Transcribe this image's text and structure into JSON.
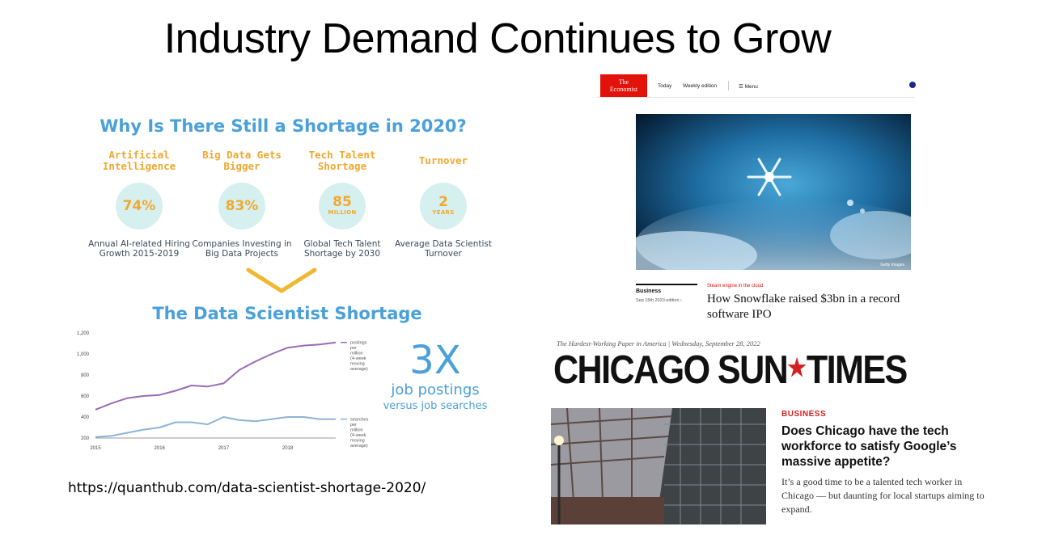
{
  "slide": {
    "title": "Industry Demand Continues to Grow",
    "source_url": "https://quanthub.com/data-scientist-shortage-2020/"
  },
  "infographic": {
    "heading": "Why Is There Still a Shortage in 2020?",
    "stats": [
      {
        "label": "Artificial Intelligence",
        "value": "74%",
        "sub": "",
        "desc": "Annual AI-related Hiring Growth 2015-2019"
      },
      {
        "label": "Big Data Gets Bigger",
        "value": "83%",
        "sub": "",
        "desc": "Companies Investing in Big Data Projects"
      },
      {
        "label": "Tech Talent Shortage",
        "value": "85",
        "sub": "MILLION",
        "desc": "Global Tech Talent Shortage by 2030"
      },
      {
        "label": "Turnover",
        "value": "2",
        "sub": "YEARS",
        "desc": "Average Data Scientist Turnover"
      }
    ],
    "chart_heading": "The Data Scientist Shortage",
    "big_stat": {
      "value": "3X",
      "line1": "job postings",
      "line2": "versus job searches"
    },
    "colors": {
      "heading": "#4aa0d8",
      "accent": "#f0a830",
      "circle": "#d6f0f0"
    }
  },
  "chart_data": {
    "type": "line",
    "x": [
      2015.0,
      2015.25,
      2015.5,
      2015.75,
      2016.0,
      2016.25,
      2016.5,
      2016.75,
      2017.0,
      2017.25,
      2017.5,
      2017.75,
      2018.0,
      2018.25,
      2018.5,
      2018.75
    ],
    "x_ticks": [
      "2015",
      "2016",
      "2017",
      "2018"
    ],
    "y_ticks": [
      "200",
      "400",
      "600",
      "800",
      "1,000",
      "1,200"
    ],
    "ylim": [
      200,
      1200
    ],
    "series": [
      {
        "name": "postings per million (4-week moving average)",
        "color": "#9b6bb5",
        "values": [
          470,
          530,
          580,
          600,
          610,
          650,
          700,
          690,
          720,
          850,
          930,
          1000,
          1060,
          1080,
          1090,
          1110
        ]
      },
      {
        "name": "searches per million (4-week moving average)",
        "color": "#8db4d8",
        "values": [
          210,
          220,
          250,
          280,
          300,
          350,
          350,
          330,
          400,
          370,
          360,
          380,
          400,
          400,
          380,
          380
        ]
      }
    ],
    "grid": false,
    "legend": "right"
  },
  "economist": {
    "logo_line1": "The",
    "logo_line2": "Economist",
    "nav": [
      "Today",
      "Weekly edition",
      "Menu"
    ],
    "section": "Business",
    "date": "Sep 15th 2020 edition",
    "kicker": "Steam engine in the cloud",
    "headline": "How Snowflake raised $3bn in a record software IPO",
    "photo_credit": "Getty Images"
  },
  "suntimes": {
    "tagline": "The Hardest-Working Paper in America | Wednesday, September 28, 2022",
    "masthead_left": "CHICAGO SUN",
    "masthead_star": "★",
    "masthead_right": "TIMES",
    "section": "BUSINESS",
    "headline": "Does Chicago have the tech workforce to satisfy Google’s massive appetite?",
    "dek": "It’s a good time to be a talented tech worker in Chicago — but daunting for local startups aiming to expand."
  }
}
